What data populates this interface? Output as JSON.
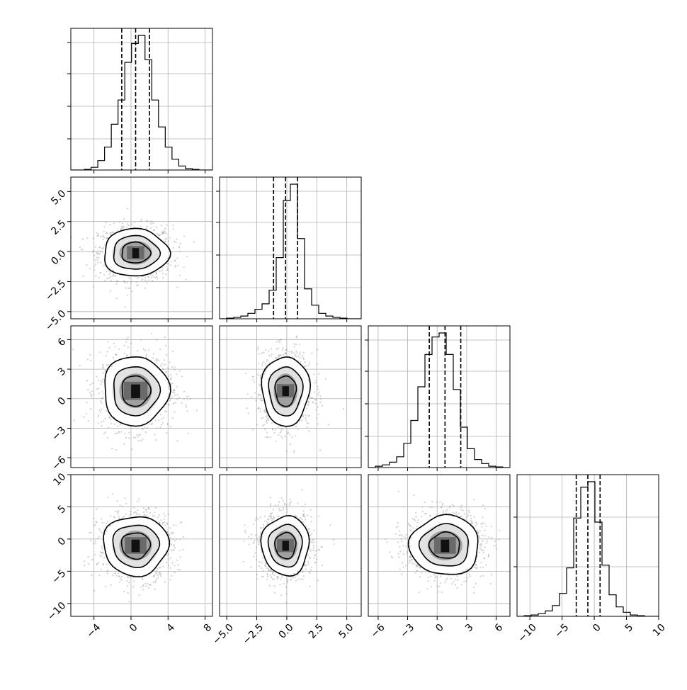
{
  "chart_data": {
    "type": "corner",
    "parameters": [
      {
        "range": [
          -6.5,
          8.8
        ],
        "ticks": [
          -4,
          0,
          4,
          8
        ],
        "tick_labels": [
          "−4",
          "0",
          "4",
          "8"
        ],
        "mean": 0.5,
        "sigma": 1.6,
        "quantiles": [
          -1.0,
          0.5,
          2.0
        ],
        "hist_bins": [
          0,
          0,
          0.005,
          0.02,
          0.07,
          0.17,
          0.34,
          0.52,
          0.8,
          0.94,
          1.0,
          0.82,
          0.52,
          0.32,
          0.17,
          0.08,
          0.03,
          0.01,
          0.005,
          0,
          0
        ],
        "hist_ticks": [
          0.22,
          0.45,
          0.68,
          0.9
        ]
      },
      {
        "range": [
          -5.6,
          6.2
        ],
        "ticks": [
          -5.0,
          -2.5,
          0.0,
          2.5,
          5.0
        ],
        "tick_labels": [
          "−5.0",
          "−2.5",
          "0.0",
          "2.5",
          "5.0"
        ],
        "mean": -0.1,
        "sigma": 0.9,
        "quantiles": [
          -1.1,
          -0.1,
          0.9
        ],
        "hist_bins": [
          0,
          0.005,
          0.01,
          0.02,
          0.04,
          0.07,
          0.11,
          0.21,
          0.45,
          0.87,
          0.99,
          0.59,
          0.22,
          0.1,
          0.04,
          0.02,
          0.01,
          0.005,
          0,
          0
        ],
        "hist_ticks": [
          0.22,
          0.45,
          0.68,
          0.9
        ]
      },
      {
        "range": [
          -7.0,
          7.4
        ],
        "ticks": [
          -6,
          -3,
          0,
          3,
          6
        ],
        "tick_labels": [
          "−6",
          "−3",
          "0",
          "3",
          "6"
        ],
        "mean": 0.8,
        "sigma": 1.6,
        "quantiles": [
          -0.8,
          0.8,
          2.4
        ],
        "hist_bins": [
          0,
          0.01,
          0.02,
          0.04,
          0.08,
          0.18,
          0.35,
          0.6,
          0.84,
          0.97,
          1.0,
          0.84,
          0.58,
          0.3,
          0.14,
          0.06,
          0.03,
          0.01,
          0.005,
          0
        ],
        "hist_ticks": [
          0.22,
          0.45,
          0.68,
          0.9
        ]
      },
      {
        "range": [
          -12,
          10
        ],
        "ticks": [
          -10,
          -5,
          0,
          5,
          10
        ],
        "tick_labels": [
          "−10",
          "−5",
          "0",
          "5",
          "10"
        ],
        "mean": -1.0,
        "sigma": 2.1,
        "quantiles": [
          -2.8,
          -1.0,
          0.9
        ],
        "hist_bins": [
          0,
          0.005,
          0.01,
          0.02,
          0.04,
          0.08,
          0.17,
          0.36,
          0.73,
          0.96,
          1.0,
          0.7,
          0.38,
          0.16,
          0.07,
          0.03,
          0.01,
          0.005,
          0,
          0
        ],
        "hist_ticks": [
          0.35,
          0.7
        ]
      }
    ],
    "contour_levels": [
      0.8,
      1.35,
      2.0
    ],
    "grid": true
  }
}
